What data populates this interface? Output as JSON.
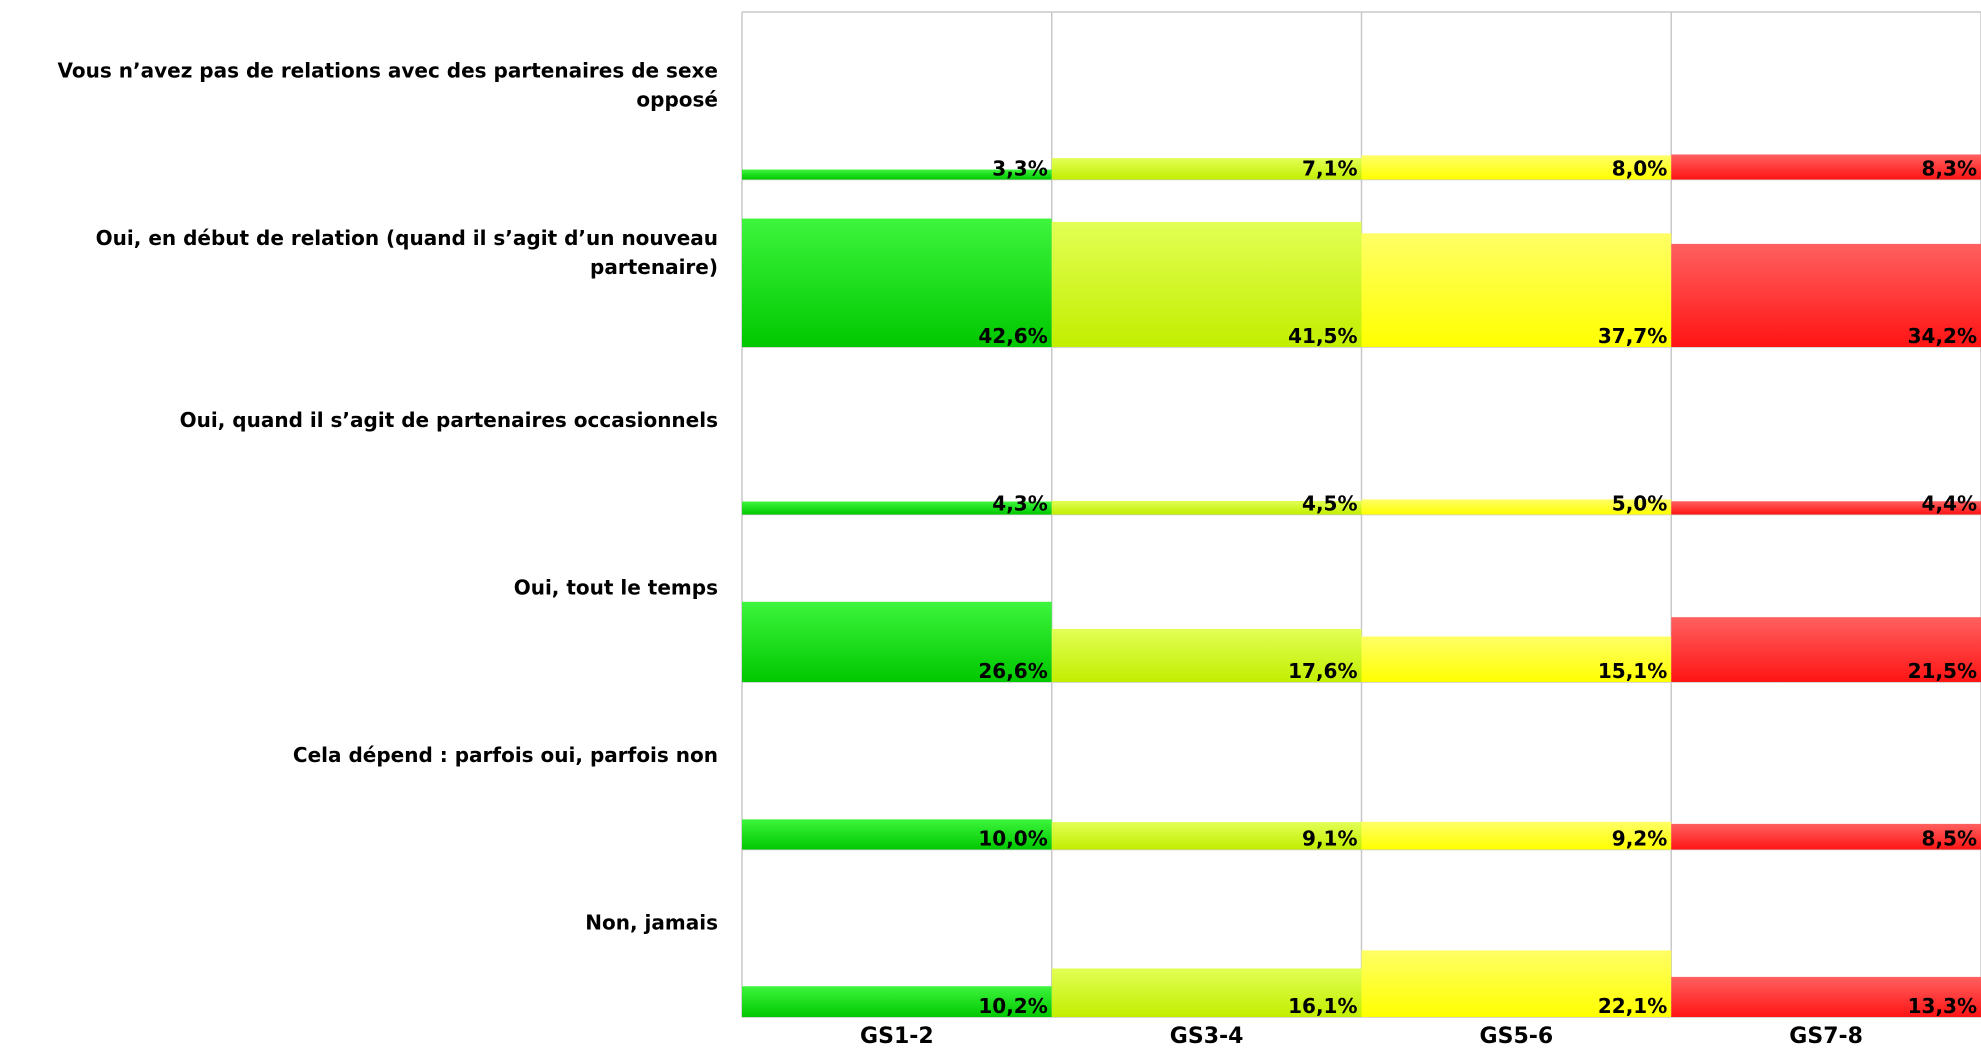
{
  "chart_data": {
    "type": "bar",
    "layout": "small-multiples matrix (rows = answers, columns = groups)",
    "categories": [
      "GS1-2",
      "GS3-4",
      "GS5-6",
      "GS7-8"
    ],
    "rows": [
      {
        "label": [
          "Vous n’avez pas de relations avec des partenaires de sexe",
          "opposé"
        ],
        "values": [
          3.3,
          7.1,
          8.0,
          8.3
        ],
        "labels": [
          "3,3%",
          "7,1%",
          "8,0%",
          "8,3%"
        ]
      },
      {
        "label": [
          "Oui, en début de relation (quand il s’agit d’un nouveau",
          "partenaire)"
        ],
        "values": [
          42.6,
          41.5,
          37.7,
          34.2
        ],
        "labels": [
          "42,6%",
          "41,5%",
          "37,7%",
          "34,2%"
        ]
      },
      {
        "label": [
          "Oui, quand il s’agit de partenaires occasionnels"
        ],
        "values": [
          4.3,
          4.5,
          5.0,
          4.4
        ],
        "labels": [
          "4,3%",
          "4,5%",
          "5,0%",
          "4,4%"
        ]
      },
      {
        "label": [
          "Oui, tout le temps"
        ],
        "values": [
          26.6,
          17.6,
          15.1,
          21.5
        ],
        "labels": [
          "26,6%",
          "17,6%",
          "15,1%",
          "21,5%"
        ]
      },
      {
        "label": [
          "Cela dépend : parfois oui, parfois non"
        ],
        "values": [
          10.0,
          9.1,
          9.2,
          8.5
        ],
        "labels": [
          "10,0%",
          "9,1%",
          "9,2%",
          "8,5%"
        ]
      },
      {
        "label": [
          "Non, jamais"
        ],
        "values": [
          10.2,
          16.1,
          22.1,
          13.3
        ],
        "labels": [
          "10,2%",
          "16,1%",
          "22,1%",
          "13,3%"
        ]
      }
    ],
    "column_colors": [
      {
        "top": "#3df53d",
        "bottom": "#00c800",
        "line": "#14d214"
      },
      {
        "top": "#e2ff55",
        "bottom": "#c2ee00",
        "line": "#c8f000"
      },
      {
        "top": "#ffff66",
        "bottom": "#ffff00",
        "line": "#f5f500"
      },
      {
        "top": "#ff6060",
        "bottom": "#ff1414",
        "line": "#ff2020"
      }
    ],
    "ylim": [
      0,
      50
    ],
    "grid": true,
    "legend": "none",
    "title": "",
    "xlabel": "",
    "ylabel": ""
  }
}
